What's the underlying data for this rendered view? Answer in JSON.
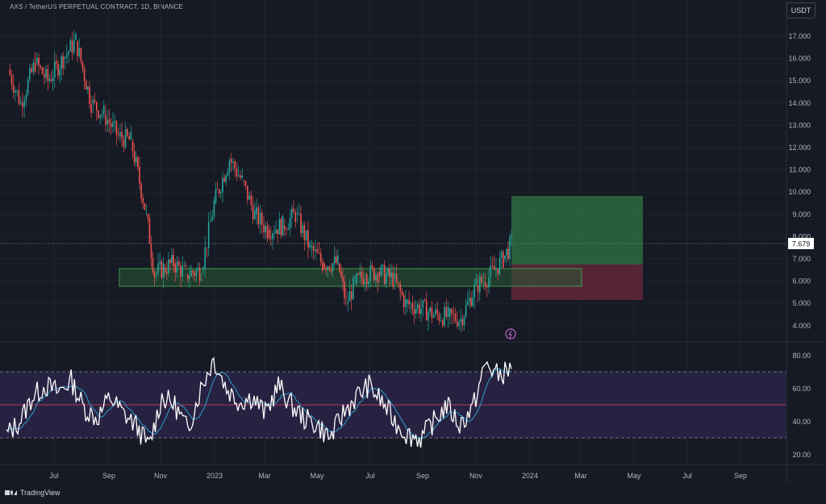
{
  "header": {
    "symbol_title": "AXS / TetherUS PERPETUAL CONTRACT, 1D, BINANCE",
    "currency_button": "USDT"
  },
  "price_scale": {
    "labels": [
      "17.000",
      "16.000",
      "15.000",
      "14.000",
      "13.000",
      "12.000",
      "11.000",
      "10.000",
      "9.000",
      "8.000",
      "7.000",
      "6.000",
      "5.000",
      "4.000"
    ],
    "current_price": "7.679"
  },
  "rsi_scale": {
    "labels": [
      "80.00",
      "60.00",
      "40.00",
      "20.00"
    ]
  },
  "time_axis": {
    "labels": [
      "Jul",
      "Sep",
      "Nov",
      "2023",
      "Mar",
      "May",
      "Jul",
      "Sep",
      "Nov",
      "2024",
      "Mar",
      "May",
      "Jul",
      "Sep"
    ]
  },
  "footer": {
    "brand": "TradingView"
  },
  "colors": {
    "background": "#161a25",
    "bull": "#26a69a",
    "bear": "#ef5350",
    "profit_zone": "#2e6b3e",
    "loss_zone": "#6b2a3d",
    "support_zone": "#2a5a34",
    "rsi_band": "#2a2446",
    "rsi_line": "#ffffff",
    "rsi_ma": "#2aa0c8",
    "rsi_midline": "#b03a5a"
  },
  "chart_data": [
    {
      "type": "candlestick",
      "title": "AXS / TetherUS PERPETUAL CONTRACT, 1D, BINANCE",
      "ylim": [
        3.4,
        17.8
      ],
      "x_ticks": [
        "Jul",
        "Sep",
        "Nov",
        "2023",
        "Mar",
        "May",
        "Jul",
        "Sep",
        "Nov",
        "2024",
        "Mar",
        "May",
        "Jul",
        "Sep"
      ],
      "series": [
        {
          "name": "close",
          "points": [
            [
              "2022-06-01",
              15.5
            ],
            [
              "2022-06-15",
              14.0
            ],
            [
              "2022-07-01",
              15.8
            ],
            [
              "2022-07-15",
              15.0
            ],
            [
              "2022-08-01",
              16.0
            ],
            [
              "2022-08-15",
              16.8
            ],
            [
              "2022-09-01",
              14.0
            ],
            [
              "2022-09-15",
              13.5
            ],
            [
              "2022-10-01",
              12.5
            ],
            [
              "2022-10-15",
              12.3
            ],
            [
              "2022-11-01",
              9.0
            ],
            [
              "2022-11-10",
              6.3
            ],
            [
              "2022-11-20",
              6.6
            ],
            [
              "2022-12-01",
              6.8
            ],
            [
              "2022-12-15",
              6.3
            ],
            [
              "2023-01-01",
              6.5
            ],
            [
              "2023-01-15",
              9.5
            ],
            [
              "2023-02-01",
              11.5
            ],
            [
              "2023-02-15",
              10.5
            ],
            [
              "2023-03-01",
              9.0
            ],
            [
              "2023-03-15",
              8.3
            ],
            [
              "2023-04-01",
              8.5
            ],
            [
              "2023-04-15",
              9.0
            ],
            [
              "2023-05-01",
              7.5
            ],
            [
              "2023-05-15",
              6.8
            ],
            [
              "2023-06-01",
              6.8
            ],
            [
              "2023-06-10",
              5.0
            ],
            [
              "2023-06-20",
              5.9
            ],
            [
              "2023-07-01",
              6.3
            ],
            [
              "2023-07-15",
              6.4
            ],
            [
              "2023-08-01",
              6.1
            ],
            [
              "2023-08-15",
              5.0
            ],
            [
              "2023-09-01",
              4.8
            ],
            [
              "2023-09-15",
              4.5
            ],
            [
              "2023-10-01",
              4.4
            ],
            [
              "2023-10-15",
              4.3
            ],
            [
              "2023-11-01",
              5.8
            ],
            [
              "2023-11-15",
              6.2
            ],
            [
              "2023-12-01",
              7.0
            ],
            [
              "2023-12-10",
              7.679
            ]
          ]
        }
      ],
      "annotations": {
        "support_zone": [
          5.75,
          6.55
        ],
        "long_position": {
          "entry": 6.8,
          "target": 9.8,
          "stop": 5.1
        },
        "last_price": 7.679
      }
    },
    {
      "type": "line",
      "title": "",
      "ylim": [
        15,
        85
      ],
      "overbought": 70,
      "midline": 50,
      "oversold": 30,
      "series": [
        {
          "values": [
            32,
            40,
            55,
            62,
            58,
            65,
            48,
            42,
            55,
            45,
            38,
            25,
            55,
            50,
            35,
            60,
            78,
            60,
            52,
            55,
            45,
            62,
            50,
            42,
            38,
            30,
            45,
            55,
            62,
            52,
            40,
            32,
            30,
            40,
            50,
            38,
            48,
            75,
            68,
            72
          ]
        }
      ]
    }
  ]
}
